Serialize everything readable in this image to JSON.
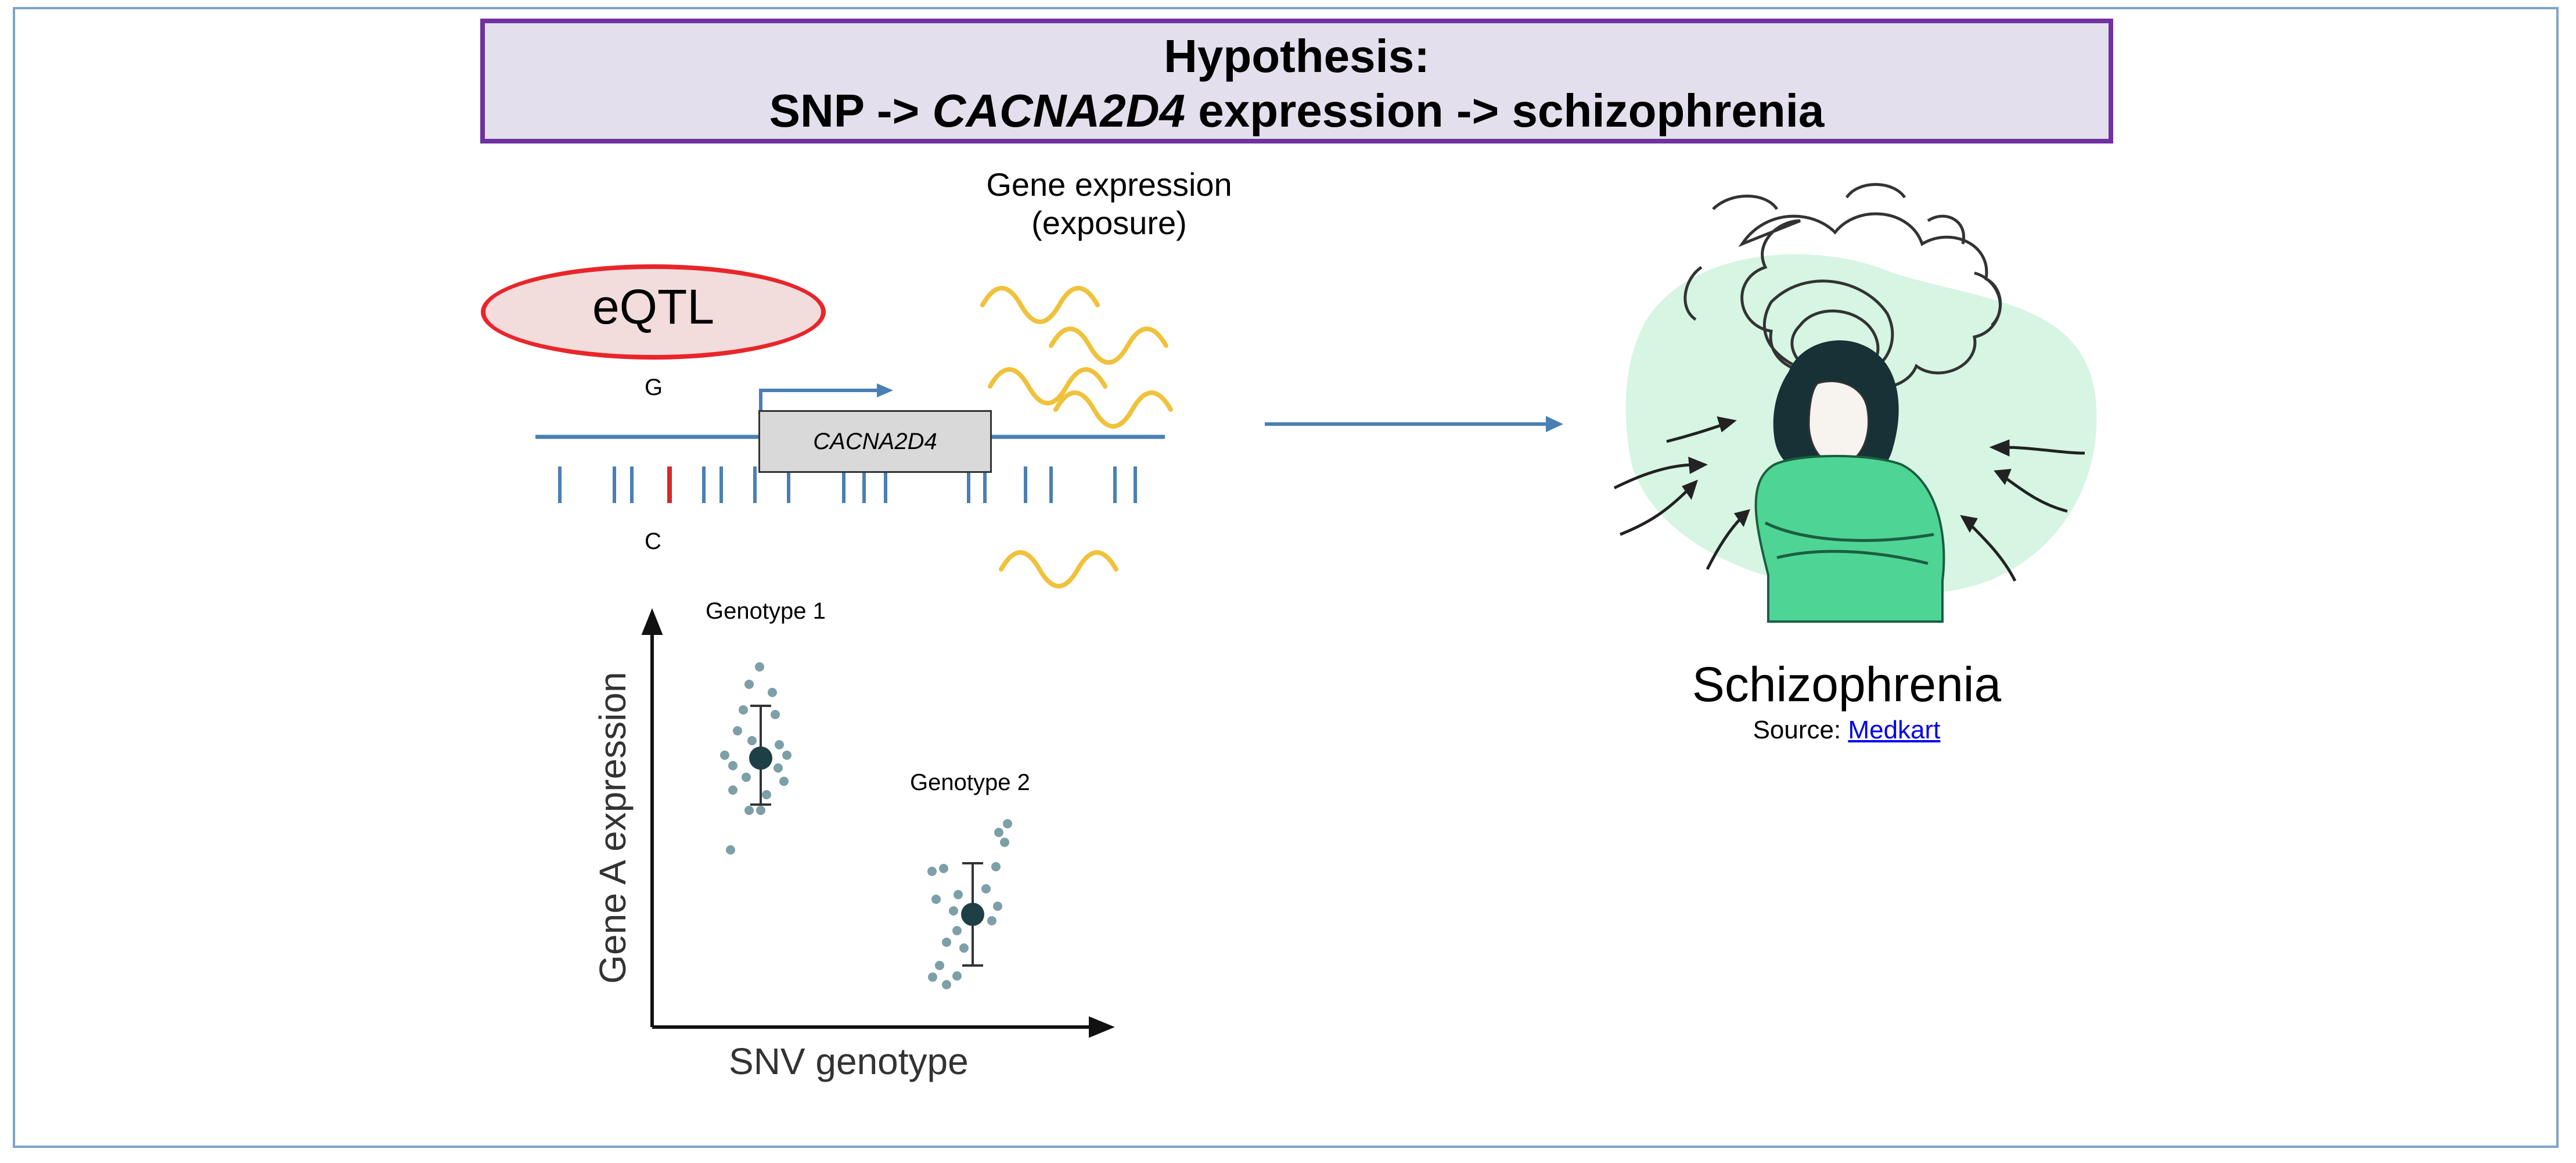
{
  "title": {
    "line1": "Hypothesis:",
    "line2_pre": "SNP -> ",
    "line2_gene": "CACNA2D4",
    "line2_post": " expression -> schizophrenia"
  },
  "eqtl": {
    "oval_label": "eQTL",
    "allele_top": "G",
    "allele_bottom": "C",
    "gene_name": "CACNA2D4"
  },
  "expression": {
    "line1": "Gene expression",
    "line2": "(exposure)"
  },
  "plot": {
    "group1_label": "Genotype 1",
    "group2_label": "Genotype 2",
    "y_axis_label": "Gene A expression",
    "x_axis_label": "SNV genotype"
  },
  "outcome": {
    "label": "Schizophrenia",
    "source_prefix": "Source: ",
    "source_link": "Medkart"
  },
  "colors": {
    "title_bg": "#e4dfec",
    "title_border": "#7131a0",
    "oval_border": "#e8262a",
    "oval_fill": "#f2dcdc",
    "dna_line": "#4a7fb5",
    "snp_highlight": "#d62a2a",
    "wave": "#f0c23b",
    "dots": "#7d9fa8",
    "mean_dot": "#1f3f46",
    "figure_bg": "#d6f5e3",
    "figure_top": "#4ed495",
    "figure_hair": "#163236"
  }
}
